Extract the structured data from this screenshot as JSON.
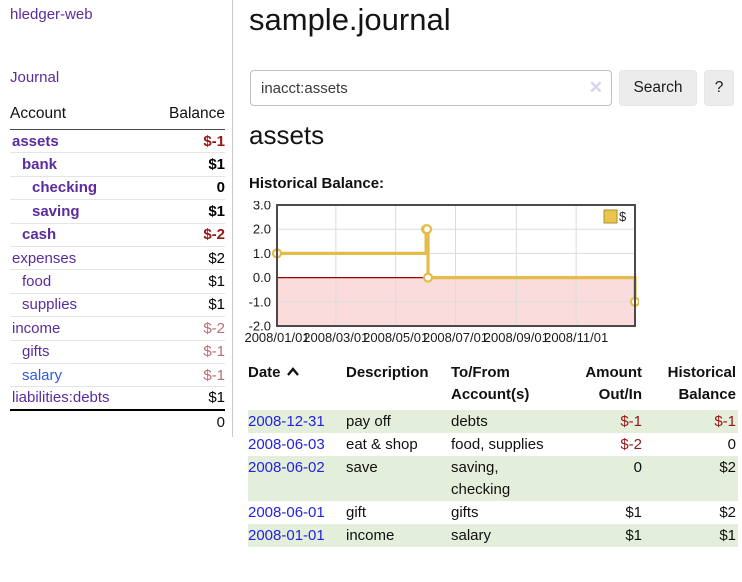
{
  "app": {
    "brand": "hledger-web",
    "nav": {
      "journal_label": "Journal"
    }
  },
  "sidebar": {
    "header": {
      "account": "Account",
      "balance": "Balance"
    },
    "accounts": [
      {
        "name": "assets",
        "balance": "$-1",
        "indent": 0,
        "bold": true,
        "neg": "strong"
      },
      {
        "name": "bank",
        "balance": "$1",
        "indent": 1,
        "bold": true
      },
      {
        "name": "checking",
        "balance": "0",
        "indent": 2,
        "bold": true
      },
      {
        "name": "saving",
        "balance": "$1",
        "indent": 2,
        "bold": true
      },
      {
        "name": "cash",
        "balance": "$-2",
        "indent": 1,
        "bold": true,
        "neg": "strong"
      },
      {
        "name": "expenses",
        "balance": "$2",
        "indent": 0
      },
      {
        "name": "food",
        "balance": "$1",
        "indent": 1
      },
      {
        "name": "supplies",
        "balance": "$1",
        "indent": 1
      },
      {
        "name": "income",
        "balance": "$-2",
        "indent": 0,
        "neg": "soft"
      },
      {
        "name": "gifts",
        "balance": "$-1",
        "indent": 1,
        "neg": "soft"
      },
      {
        "name": "salary",
        "balance": "$-1",
        "indent": 1,
        "neg": "soft",
        "highlight": true
      },
      {
        "name": "liabilities:debts",
        "balance": "$1",
        "indent": 0
      }
    ],
    "total": "0"
  },
  "main": {
    "title": "sample.journal",
    "search": {
      "value": "inacct:assets",
      "clear_icon": "✕",
      "button_label": "Search",
      "help_label": "?"
    },
    "account_heading": "assets",
    "chart_heading": "Historical Balance:"
  },
  "chart_data": {
    "type": "line",
    "step": true,
    "title": "Historical Balance",
    "series": [
      {
        "name": "$",
        "points": [
          {
            "x": "2008-01-01",
            "y": 1
          },
          {
            "x": "2008-06-01",
            "y": 2
          },
          {
            "x": "2008-06-02",
            "y": 2
          },
          {
            "x": "2008-06-03",
            "y": 0
          },
          {
            "x": "2008-12-31",
            "y": -1
          }
        ]
      }
    ],
    "x_range": [
      "2008-01-01",
      "2008-12-31"
    ],
    "x_ticks": [
      "2008/01/01",
      "2008/03/01",
      "2008/05/01",
      "2008/07/01",
      "2008/09/01",
      "2008/11/01"
    ],
    "y_ticks": [
      "3.0",
      "2.0",
      "1.0",
      "0.0",
      "-1.0",
      "-2.0"
    ],
    "ylim": [
      -2,
      3
    ],
    "grid": true,
    "legend": {
      "label": "$",
      "position": "top-right"
    },
    "line_color": "#e4bc49",
    "legend_fill": "#e9c54e",
    "negative_region_fill": "#fbdcdc",
    "zero_line_color": "#990000",
    "border_color": "#4a4a4a"
  },
  "register": {
    "headers": {
      "date": "Date",
      "description": "Description",
      "tofrom": "To/From\nAccount(s)",
      "amount": "Amount\nOut/In",
      "balance": "Historical\nBalance"
    },
    "rows": [
      {
        "date": "2008-12-31",
        "description": "pay off",
        "accounts": "debts",
        "amount": "$-1",
        "balance": "$-1",
        "amount_neg": true,
        "balance_neg": true,
        "shade": true
      },
      {
        "date": "2008-06-03",
        "description": "eat & shop",
        "accounts": "food, supplies",
        "amount": "$-2",
        "balance": "0",
        "amount_neg": true,
        "balance_neg": false,
        "shade": false
      },
      {
        "date": "2008-06-02",
        "description": "save",
        "accounts": "saving,\nchecking",
        "amount": "0",
        "balance": "$2",
        "amount_neg": false,
        "balance_neg": false,
        "shade": true
      },
      {
        "date": "2008-06-01",
        "description": "gift",
        "accounts": "gifts",
        "amount": "$1",
        "balance": "$2",
        "amount_neg": false,
        "balance_neg": false,
        "shade": false
      },
      {
        "date": "2008-01-01",
        "description": "income",
        "accounts": "salary",
        "amount": "$1",
        "balance": "$1",
        "amount_neg": false,
        "balance_neg": false,
        "shade": true
      }
    ]
  },
  "colors": {
    "purple": "#5b2c9e",
    "link_blue": "#2323de",
    "link_blue_light": "#2f5bdb",
    "neg_strong": "#951616",
    "neg_soft": "#bb6e74",
    "row_green": "#e3eedb"
  }
}
